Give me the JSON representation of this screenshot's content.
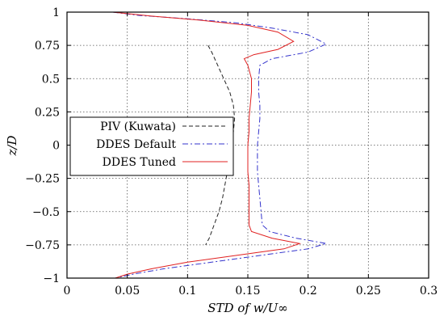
{
  "chart_data": {
    "type": "line",
    "xlabel": "STD of w/U∞",
    "ylabel": "z/D",
    "xlim": [
      0,
      0.3
    ],
    "ylim": [
      -1,
      1
    ],
    "x_ticks": [
      "0",
      "0.05",
      "0.1",
      "0.15",
      "0.2",
      "0.25",
      "0.3"
    ],
    "y_ticks": [
      "1",
      "0.75",
      "0.5",
      "0.25",
      "0",
      "−0.25",
      "−0.5",
      "−0.75",
      "−1"
    ],
    "grid": true,
    "legend_position": "middle-left",
    "series": [
      {
        "name": "PIV (Kuwata)",
        "color": "#222222",
        "dash": "dashed",
        "points": [
          [
            0.117,
            0.75
          ],
          [
            0.12,
            0.7
          ],
          [
            0.125,
            0.6
          ],
          [
            0.13,
            0.5
          ],
          [
            0.135,
            0.4
          ],
          [
            0.138,
            0.3
          ],
          [
            0.139,
            0.2
          ],
          [
            0.138,
            0.1
          ],
          [
            0.136,
            0.0
          ],
          [
            0.134,
            -0.1
          ],
          [
            0.133,
            -0.2
          ],
          [
            0.131,
            -0.3
          ],
          [
            0.129,
            -0.4
          ],
          [
            0.126,
            -0.5
          ],
          [
            0.122,
            -0.6
          ],
          [
            0.118,
            -0.7
          ],
          [
            0.115,
            -0.75
          ]
        ]
      },
      {
        "name": "DDES Default",
        "color": "#3333cc",
        "dash": "dashdot",
        "points": [
          [
            0.038,
            1.0
          ],
          [
            0.06,
            0.975
          ],
          [
            0.1,
            0.95
          ],
          [
            0.14,
            0.92
          ],
          [
            0.17,
            0.88
          ],
          [
            0.2,
            0.83
          ],
          [
            0.215,
            0.76
          ],
          [
            0.2,
            0.7
          ],
          [
            0.17,
            0.65
          ],
          [
            0.16,
            0.6
          ],
          [
            0.159,
            0.5
          ],
          [
            0.159,
            0.4
          ],
          [
            0.16,
            0.3
          ],
          [
            0.16,
            0.2
          ],
          [
            0.159,
            0.1
          ],
          [
            0.158,
            0.0
          ],
          [
            0.158,
            -0.1
          ],
          [
            0.158,
            -0.2
          ],
          [
            0.159,
            -0.3
          ],
          [
            0.16,
            -0.4
          ],
          [
            0.161,
            -0.5
          ],
          [
            0.162,
            -0.6
          ],
          [
            0.168,
            -0.65
          ],
          [
            0.19,
            -0.7
          ],
          [
            0.215,
            -0.74
          ],
          [
            0.2,
            -0.78
          ],
          [
            0.16,
            -0.83
          ],
          [
            0.12,
            -0.88
          ],
          [
            0.08,
            -0.93
          ],
          [
            0.055,
            -0.97
          ],
          [
            0.04,
            -1.0
          ]
        ]
      },
      {
        "name": "DDES Tuned",
        "color": "#e02020",
        "dash": "solid",
        "points": [
          [
            0.038,
            1.0
          ],
          [
            0.07,
            0.97
          ],
          [
            0.11,
            0.94
          ],
          [
            0.15,
            0.9
          ],
          [
            0.175,
            0.85
          ],
          [
            0.188,
            0.78
          ],
          [
            0.175,
            0.72
          ],
          [
            0.155,
            0.68
          ],
          [
            0.147,
            0.65
          ],
          [
            0.15,
            0.6
          ],
          [
            0.153,
            0.5
          ],
          [
            0.153,
            0.4
          ],
          [
            0.152,
            0.3
          ],
          [
            0.151,
            0.2
          ],
          [
            0.151,
            0.1
          ],
          [
            0.15,
            0.0
          ],
          [
            0.15,
            -0.1
          ],
          [
            0.15,
            -0.2
          ],
          [
            0.151,
            -0.3
          ],
          [
            0.151,
            -0.4
          ],
          [
            0.151,
            -0.5
          ],
          [
            0.151,
            -0.6
          ],
          [
            0.153,
            -0.65
          ],
          [
            0.17,
            -0.7
          ],
          [
            0.193,
            -0.74
          ],
          [
            0.18,
            -0.78
          ],
          [
            0.14,
            -0.83
          ],
          [
            0.1,
            -0.88
          ],
          [
            0.07,
            -0.93
          ],
          [
            0.05,
            -0.97
          ],
          [
            0.04,
            -1.0
          ]
        ]
      }
    ]
  }
}
